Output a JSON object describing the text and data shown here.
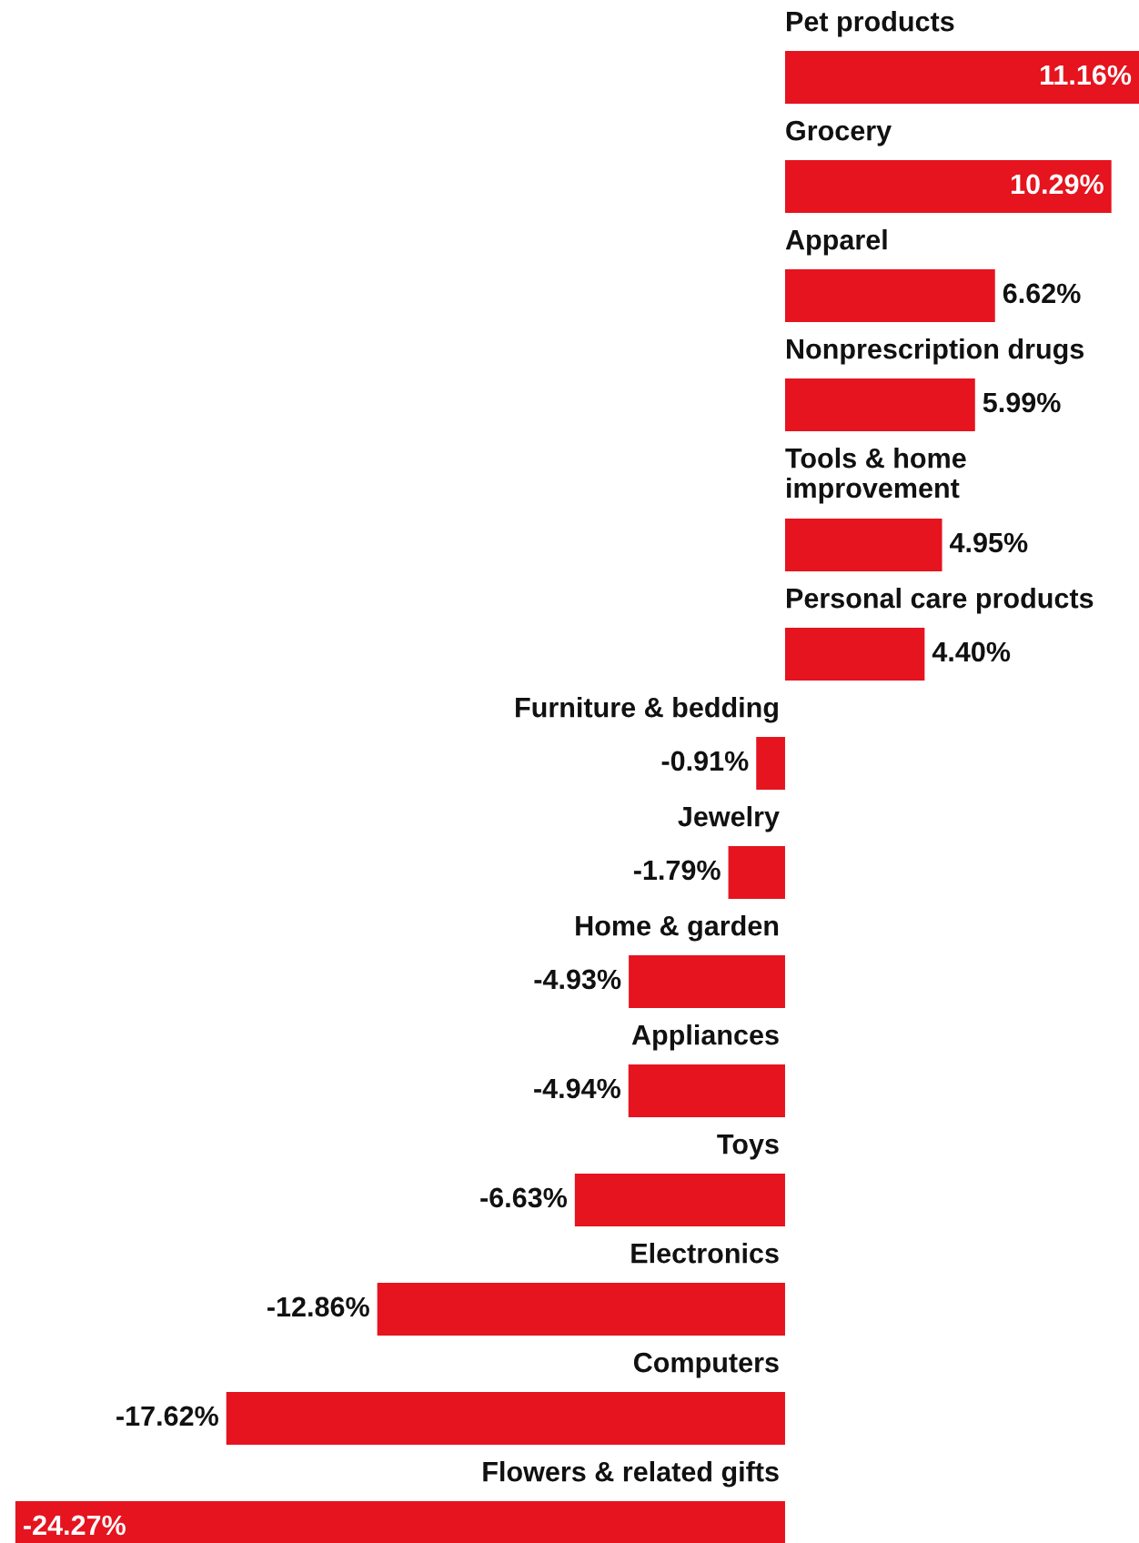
{
  "chart_data": {
    "type": "bar",
    "orientation": "horizontal",
    "color": "#e5141f",
    "categories": [
      "Pet products",
      "Grocery",
      "Apparel",
      "Nonprescription drugs",
      "Tools & home improvement",
      "Personal care products",
      "Furniture & bedding",
      "Jewelry",
      "Home & garden",
      "Appliances",
      "Toys",
      "Electronics",
      "Computers",
      "Flowers & related gifts"
    ],
    "values": [
      11.16,
      10.29,
      6.62,
      5.99,
      4.95,
      4.4,
      -0.91,
      -1.79,
      -4.93,
      -4.94,
      -6.63,
      -12.86,
      -17.62,
      -24.27
    ],
    "value_labels": [
      "11.16%",
      "10.29%",
      "6.62%",
      "5.99%",
      "4.95%",
      "4.40%",
      "-0.91%",
      "-1.79%",
      "-4.93%",
      "-4.94%",
      "-6.63%",
      "-12.86%",
      "-17.62%",
      "-24.27%"
    ]
  }
}
